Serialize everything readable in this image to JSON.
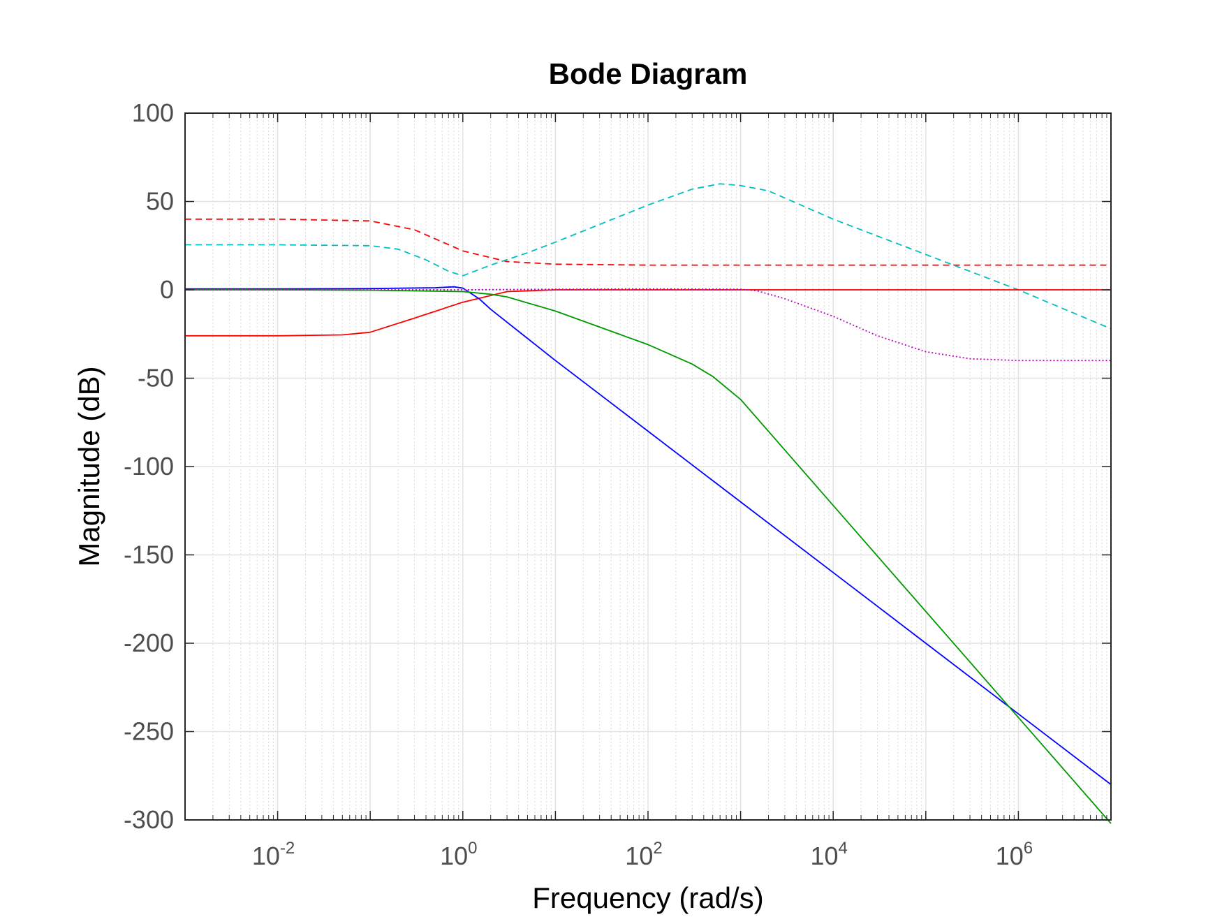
{
  "chart_data": {
    "type": "line",
    "title": "Bode Diagram",
    "xlabel": "Frequency  (rad/s)",
    "ylabel": "Magnitude (dB)",
    "xscale": "log",
    "xlim": [
      0.001,
      10000000
    ],
    "ylim": [
      -300,
      100
    ],
    "grid": true,
    "minor_grid_x": true,
    "x_ticks": [
      {
        "base": "10",
        "exp": "-2",
        "value": 0.01
      },
      {
        "base": "10",
        "exp": "0",
        "value": 1
      },
      {
        "base": "10",
        "exp": "2",
        "value": 100
      },
      {
        "base": "10",
        "exp": "4",
        "value": 10000
      },
      {
        "base": "10",
        "exp": "6",
        "value": 1000000
      }
    ],
    "y_ticks": [
      {
        "label": "100",
        "value": 100
      },
      {
        "label": "50",
        "value": 50
      },
      {
        "label": "0",
        "value": 0
      },
      {
        "label": "-50",
        "value": -50
      },
      {
        "label": "-100",
        "value": -100
      },
      {
        "label": "-150",
        "value": -150
      },
      {
        "label": "-200",
        "value": -200
      },
      {
        "label": "-250",
        "value": -250
      },
      {
        "label": "-300",
        "value": -300
      }
    ],
    "series": [
      {
        "color": "#ff0000",
        "style": "dashed",
        "x": [
          0.001,
          0.01,
          0.1,
          0.3,
          1,
          3,
          10,
          100,
          1000,
          10000,
          100000,
          1000000,
          10000000
        ],
        "y": [
          40,
          40,
          39,
          34,
          22,
          16,
          14.5,
          14,
          14,
          14,
          14,
          14,
          14
        ]
      },
      {
        "color": "#00bfbf",
        "style": "dashed",
        "x": [
          0.001,
          0.01,
          0.1,
          0.2,
          0.4,
          0.7,
          1,
          2,
          5,
          10,
          100,
          300,
          600,
          1000,
          2000,
          10000,
          100000,
          1000000,
          10000000
        ],
        "y": [
          25.5,
          25.5,
          25,
          23,
          17,
          10.5,
          8,
          14,
          21,
          27,
          48,
          57,
          60,
          59,
          56,
          40,
          20,
          0,
          -22
        ]
      },
      {
        "color": "#ff0000",
        "style": "solid",
        "x": [
          0.001,
          0.01,
          0.05,
          0.1,
          0.3,
          1,
          3,
          10,
          100,
          1000,
          10000,
          1000000,
          10000000
        ],
        "y": [
          -26,
          -26,
          -25.5,
          -24,
          -16,
          -7,
          -1,
          0,
          0,
          0,
          0,
          0,
          0
        ]
      },
      {
        "color": "#0000ff",
        "style": "solid",
        "x": [
          0.001,
          0.01,
          0.1,
          0.5,
          0.8,
          1,
          1.5,
          2,
          10,
          100,
          1000,
          10000,
          100000,
          1000000,
          10000000
        ],
        "y": [
          0.5,
          0.5,
          0.7,
          1.2,
          1.7,
          1,
          -5,
          -11,
          -40,
          -80,
          -120,
          -160,
          -200,
          -240,
          -280
        ]
      },
      {
        "color": "#009900",
        "style": "solid",
        "x": [
          0.001,
          0.01,
          0.1,
          1,
          2,
          3,
          10,
          100,
          300,
          500,
          1000,
          10000,
          100000,
          1000000,
          10000000
        ],
        "y": [
          0,
          0,
          -0.2,
          -1,
          -2.5,
          -4,
          -12,
          -31,
          -42,
          -49,
          -62,
          -122,
          -182,
          -242,
          -302
        ]
      },
      {
        "color": "#bf00bf",
        "style": "dotted",
        "x": [
          0.001,
          0.1,
          1,
          10,
          100,
          1000,
          1500,
          3000,
          10000,
          30000,
          100000,
          300000,
          1000000,
          10000000
        ],
        "y": [
          0,
          0,
          0,
          0.3,
          0.5,
          0.3,
          -0.5,
          -5,
          -15,
          -26,
          -35,
          -39,
          -40,
          -40
        ]
      }
    ]
  }
}
